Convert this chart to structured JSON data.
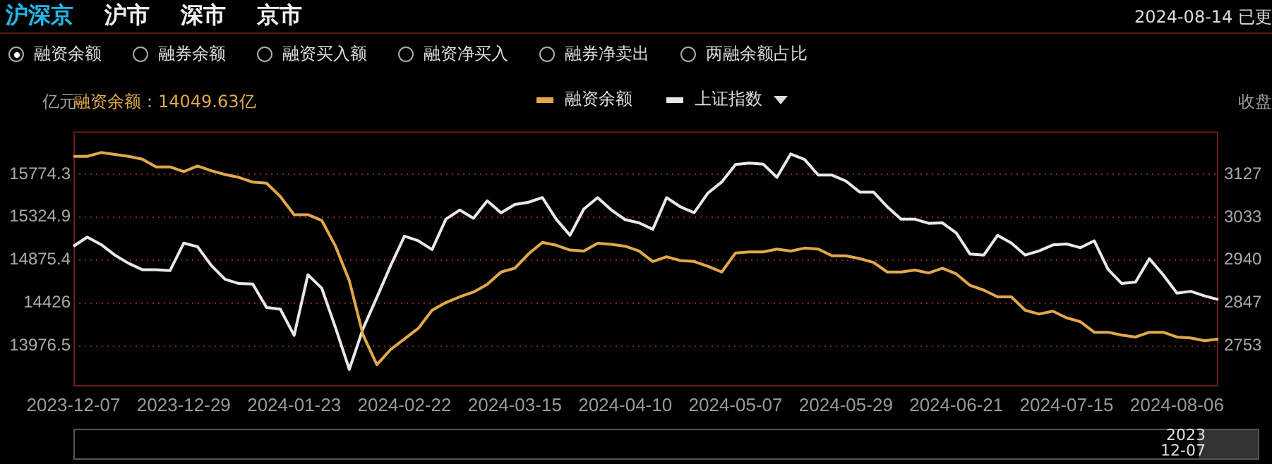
{
  "chart_data": {
    "type": "line",
    "ylabel": "亿元",
    "y2label": "收盘",
    "annotations": [
      "沪深京",
      "沪市",
      "深市",
      "京市",
      "2024-08-14 已更",
      "融资余额",
      "融券余额",
      "融资买入额",
      "融资净买入",
      "融券净卖出",
      "两融余额占比",
      "融资余额：14049.63亿",
      "2023 12-07"
    ],
    "categories": [
      "2023-12-07",
      null,
      null,
      null,
      null,
      null,
      null,
      null,
      "2023-12-29",
      null,
      null,
      null,
      null,
      null,
      null,
      null,
      "2024-01-23",
      null,
      null,
      null,
      null,
      null,
      null,
      null,
      "2024-02-22",
      null,
      null,
      null,
      null,
      null,
      null,
      null,
      "2024-03-15",
      null,
      null,
      null,
      null,
      null,
      null,
      null,
      "2024-04-10",
      null,
      null,
      null,
      null,
      null,
      null,
      null,
      "2024-05-07",
      null,
      null,
      null,
      null,
      null,
      null,
      null,
      "2024-05-29",
      null,
      null,
      null,
      null,
      null,
      null,
      null,
      "2024-06-21",
      null,
      null,
      null,
      null,
      null,
      null,
      null,
      "2024-07-15",
      null,
      null,
      null,
      null,
      null,
      null,
      null,
      "2024-08-06",
      null,
      null,
      null
    ],
    "series": [
      {
        "name": "融资余额",
        "color": "#e0a84a",
        "values": [
          15960,
          15960,
          16000,
          15980,
          15960,
          15930,
          15850,
          15850,
          15800,
          15860,
          15810,
          15770,
          15740,
          15690,
          15680,
          15540,
          15350,
          15350,
          15290,
          15020,
          14660,
          14090,
          13780,
          13940,
          14050,
          14160,
          14350,
          14430,
          14490,
          14540,
          14620,
          14750,
          14790,
          14940,
          15060,
          15030,
          14980,
          14970,
          15050,
          15040,
          15020,
          14970,
          14860,
          14910,
          14870,
          14860,
          14810,
          14750,
          14950,
          14960,
          14960,
          14990,
          14970,
          15000,
          14990,
          14920,
          14920,
          14890,
          14850,
          14750,
          14750,
          14770,
          14740,
          14790,
          14730,
          14610,
          14560,
          14490,
          14490,
          14350,
          14310,
          14340,
          14270,
          14230,
          14120,
          14120,
          14090,
          14070,
          14120,
          14120,
          14070,
          14060,
          14030,
          14049.63
        ]
      },
      {
        "name": "上证指数",
        "color": "#e8e8e8",
        "axis": "y2",
        "values": [
          2970,
          2990,
          2974,
          2951,
          2933,
          2919,
          2919,
          2917,
          2977,
          2969,
          2928,
          2898,
          2889,
          2888,
          2837,
          2833,
          2776,
          2908,
          2879,
          2793,
          2702,
          2791,
          2859,
          2928,
          2992,
          2982,
          2963,
          3029,
          3049,
          3031,
          3069,
          3043,
          3061,
          3066,
          3076,
          3029,
          2994,
          3051,
          3076,
          3049,
          3028,
          3021,
          3007,
          3076,
          3056,
          3043,
          3086,
          3110,
          3148,
          3151,
          3149,
          3120,
          3171,
          3159,
          3125,
          3125,
          3112,
          3088,
          3088,
          3056,
          3029,
          3029,
          3020,
          3021,
          2999,
          2953,
          2951,
          2994,
          2977,
          2951,
          2960,
          2973,
          2975,
          2967,
          2982,
          2920,
          2889,
          2892,
          2943,
          2908,
          2868,
          2872,
          2862,
          2854
        ]
      }
    ],
    "ylim": [
      13552.8,
      16220.8
    ],
    "yticks": [
      13976.5,
      14426.0,
      14875.4,
      15324.9,
      15774.3
    ],
    "y2lim": [
      2665,
      3220
    ],
    "y2ticks": [
      2753,
      2847,
      2940,
      3033,
      3127
    ],
    "grid": "y",
    "legend": "top",
    "marker": "none",
    "line_style": "solid"
  }
}
